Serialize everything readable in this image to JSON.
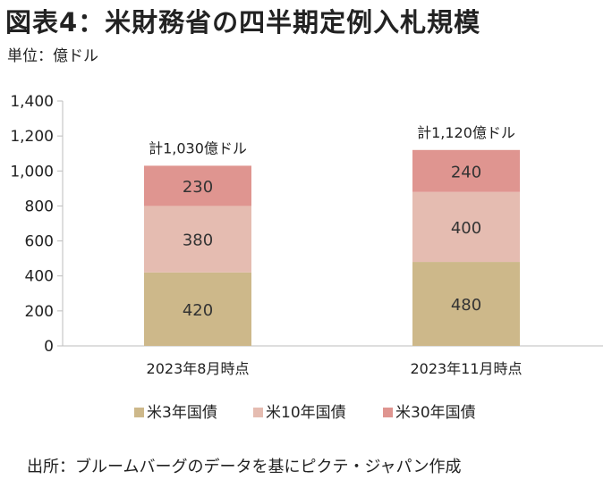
{
  "page": {
    "title": "図表4：米財務省の四半期定例入札規模",
    "unit": "単位：億ドル",
    "source": "出所：ブルームバーグのデータを基にピクテ・ジャパン作成"
  },
  "chart_data": {
    "type": "bar",
    "stacked": true,
    "categories": [
      "2023年8月時点",
      "2023年11月時点"
    ],
    "series": [
      {
        "name": "米3年国債",
        "values": [
          420,
          480
        ],
        "color": "#cdb88a"
      },
      {
        "name": "米10年国債",
        "values": [
          380,
          400
        ],
        "color": "#e5bcb1"
      },
      {
        "name": "米30年国債",
        "values": [
          230,
          240
        ],
        "color": "#df9590"
      }
    ],
    "totals": [
      "計1,030億ドル",
      "計1,120億ドル"
    ],
    "ylim": [
      0,
      1400
    ],
    "yticks": [
      "0",
      "200",
      "400",
      "600",
      "800",
      "1,000",
      "1,200",
      "1,400"
    ],
    "grid": false,
    "legend_position": "bottom"
  }
}
